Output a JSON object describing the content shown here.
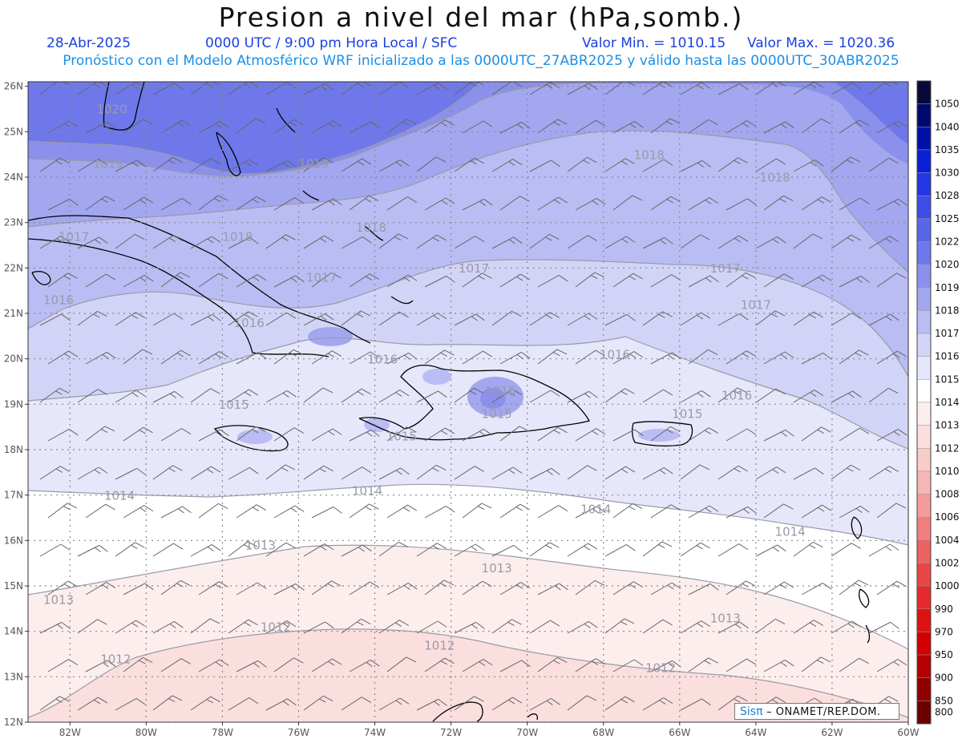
{
  "header": {
    "title": "Presion a nivel del mar (hPa,somb.)",
    "date": "28-Abr-2025",
    "time_info": "0000 UTC / 9:00 pm Hora Local / SFC",
    "valor_min": "Valor Min. = 1010.15",
    "valor_max": "Valor Max. = 1020.36",
    "subtitle": "Pronóstico con el Modelo Atmosférico WRF inicializado a las 0000UTC_27ABR2025 y válido hasta las  0000UTC_30ABR2025"
  },
  "axes": {
    "lat_labels": [
      "26N",
      "25N",
      "24N",
      "23N",
      "22N",
      "21N",
      "20N",
      "19N",
      "18N",
      "17N",
      "16N",
      "15N",
      "14N",
      "13N",
      "12N"
    ],
    "lon_labels": [
      "82W",
      "80W",
      "78W",
      "76W",
      "74W",
      "72W",
      "70W",
      "68W",
      "66W",
      "64W",
      "62W",
      "60W"
    ]
  },
  "contour_labels": [
    {
      "text": "1020",
      "lon": -80.9,
      "lat": 25.4
    },
    {
      "text": "1019",
      "lon": -81.0,
      "lat": 24.2
    },
    {
      "text": "1019",
      "lon": -75.6,
      "lat": 24.2
    },
    {
      "text": "1018",
      "lon": -66.8,
      "lat": 24.4
    },
    {
      "text": "1018",
      "lon": -63.5,
      "lat": 23.9
    },
    {
      "text": "1018",
      "lon": -77.6,
      "lat": 22.6
    },
    {
      "text": "1018",
      "lon": -74.1,
      "lat": 22.8
    },
    {
      "text": "1017",
      "lon": -81.9,
      "lat": 22.6
    },
    {
      "text": "1017",
      "lon": -75.4,
      "lat": 21.7
    },
    {
      "text": "1017",
      "lon": -71.4,
      "lat": 21.9
    },
    {
      "text": "1017",
      "lon": -64.8,
      "lat": 21.9
    },
    {
      "text": "1017",
      "lon": -64.0,
      "lat": 21.1
    },
    {
      "text": "1016",
      "lon": -82.3,
      "lat": 21.2
    },
    {
      "text": "1016",
      "lon": -77.3,
      "lat": 20.7
    },
    {
      "text": "1016",
      "lon": -73.8,
      "lat": 19.9
    },
    {
      "text": "1016",
      "lon": -70.7,
      "lat": 19.2
    },
    {
      "text": "1016",
      "lon": -67.7,
      "lat": 20.0
    },
    {
      "text": "1016",
      "lon": -64.5,
      "lat": 19.1
    },
    {
      "text": "1015",
      "lon": -77.7,
      "lat": 18.9
    },
    {
      "text": "1015",
      "lon": -73.3,
      "lat": 18.2
    },
    {
      "text": "1015",
      "lon": -70.8,
      "lat": 18.7
    },
    {
      "text": "1015",
      "lon": -65.8,
      "lat": 18.7
    },
    {
      "text": "1014",
      "lon": -80.7,
      "lat": 16.9
    },
    {
      "text": "1014",
      "lon": -74.2,
      "lat": 17.0
    },
    {
      "text": "1014",
      "lon": -68.2,
      "lat": 16.6
    },
    {
      "text": "1014",
      "lon": -63.1,
      "lat": 16.1
    },
    {
      "text": "1013",
      "lon": -77.0,
      "lat": 15.8
    },
    {
      "text": "1013",
      "lon": -70.8,
      "lat": 15.3
    },
    {
      "text": "1013",
      "lon": -82.3,
      "lat": 14.6
    },
    {
      "text": "1013",
      "lon": -64.8,
      "lat": 14.2
    },
    {
      "text": "1012",
      "lon": -76.6,
      "lat": 14.0
    },
    {
      "text": "1012",
      "lon": -72.3,
      "lat": 13.6
    },
    {
      "text": "1012",
      "lon": -80.8,
      "lat": 13.3
    },
    {
      "text": "1012",
      "lon": -66.5,
      "lat": 13.1
    }
  ],
  "legend": [
    {
      "label": "1050",
      "color": "#08083a"
    },
    {
      "label": "1040",
      "color": "#000a6e"
    },
    {
      "label": "1035",
      "color": "#0012a6"
    },
    {
      "label": "1030",
      "color": "#0a1fd6"
    },
    {
      "label": "1028",
      "color": "#2436e4"
    },
    {
      "label": "1025",
      "color": "#3c4ee6"
    },
    {
      "label": "1022",
      "color": "#5a66e8"
    },
    {
      "label": "1020",
      "color": "#6f78ea"
    },
    {
      "label": "1019",
      "color": "#8a90ec"
    },
    {
      "label": "1018",
      "color": "#a3a7f0"
    },
    {
      "label": "1017",
      "color": "#babdf4"
    },
    {
      "label": "1016",
      "color": "#d2d4f7"
    },
    {
      "label": "1015",
      "color": "#e6e7fa"
    },
    {
      "label": "1014",
      "color": "#ffffff"
    },
    {
      "label": "1013",
      "color": "#fdeeee"
    },
    {
      "label": "1012",
      "color": "#fbdede"
    },
    {
      "label": "1010",
      "color": "#f9cccc"
    },
    {
      "label": "1008",
      "color": "#f7b6b6"
    },
    {
      "label": "1006",
      "color": "#f49c9c"
    },
    {
      "label": "1004",
      "color": "#f08080"
    },
    {
      "label": "1002",
      "color": "#ec6262"
    },
    {
      "label": "1000",
      "color": "#e84646"
    },
    {
      "label": "990",
      "color": "#e42a2a"
    },
    {
      "label": "970",
      "color": "#df1212"
    },
    {
      "label": "950",
      "color": "#d20000"
    },
    {
      "label": "900",
      "color": "#b30000"
    },
    {
      "label": "850",
      "color": "#900000"
    },
    {
      "label": "800",
      "color": "#6a0000"
    }
  ],
  "credit": {
    "logo": "Sisπ",
    "separator": " – ",
    "org": "ONAMET/REP.DOM."
  }
}
